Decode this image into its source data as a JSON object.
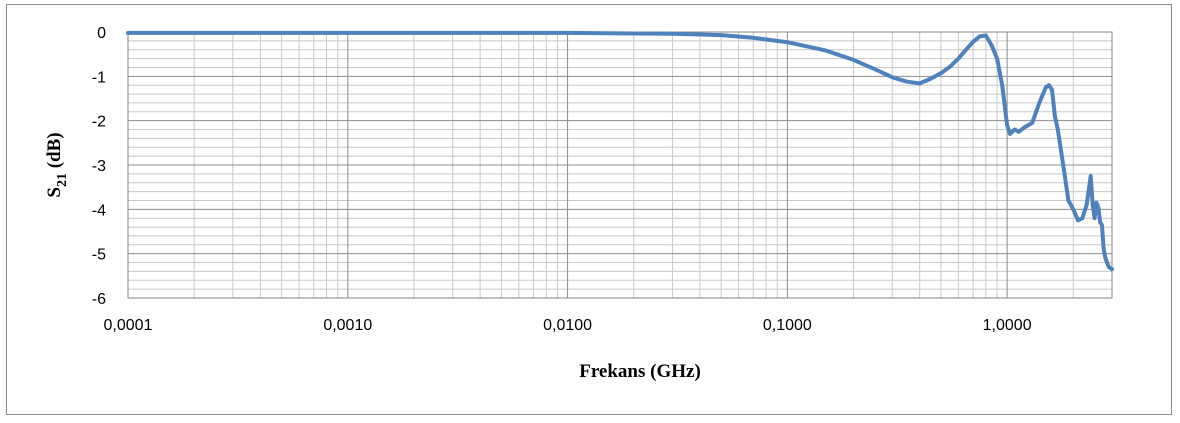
{
  "chart_data": {
    "type": "line",
    "xlabel": "Frekans (GHz)",
    "ylabel_main": "S",
    "ylabel_sub": "21",
    "ylabel_unit": " (dB)",
    "x_scale": "log",
    "xlim": [
      0.0001,
      3.0
    ],
    "ylim": [
      -6,
      0
    ],
    "x_ticks": [
      "0,0001",
      "0,0010",
      "0,0100",
      "0,1000",
      "1,0000"
    ],
    "x_tick_values": [
      0.0001,
      0.001,
      0.01,
      0.1,
      1.0
    ],
    "y_ticks": [
      "0",
      "-1",
      "-2",
      "-3",
      "-4",
      "-5",
      "-6"
    ],
    "y_tick_values": [
      0,
      -1,
      -2,
      -3,
      -4,
      -5,
      -6
    ],
    "grid": "major+minor",
    "legend": "none",
    "line_color": "#4f81bd",
    "series": [
      {
        "x": [
          0.0001,
          0.001,
          0.01,
          0.03,
          0.05,
          0.07,
          0.1,
          0.15,
          0.2,
          0.25,
          0.3,
          0.35,
          0.4,
          0.45,
          0.5,
          0.55,
          0.6,
          0.65,
          0.7,
          0.75,
          0.8,
          0.85,
          0.9,
          0.95,
          1.0,
          1.03,
          1.08,
          1.13,
          1.2,
          1.3,
          1.4,
          1.5,
          1.55,
          1.6,
          1.65,
          1.7,
          1.8,
          1.9,
          2.0,
          2.1,
          2.2,
          2.3,
          2.4,
          2.45,
          2.5,
          2.55,
          2.6,
          2.65,
          2.7,
          2.75,
          2.8,
          2.9,
          3.0
        ],
        "values": [
          -0.02,
          -0.02,
          -0.02,
          -0.04,
          -0.07,
          -0.13,
          -0.23,
          -0.42,
          -0.63,
          -0.84,
          -1.02,
          -1.12,
          -1.16,
          -1.05,
          -0.93,
          -0.78,
          -0.6,
          -0.4,
          -0.22,
          -0.1,
          -0.08,
          -0.3,
          -0.6,
          -1.2,
          -2.1,
          -2.3,
          -2.2,
          -2.25,
          -2.15,
          -2.05,
          -1.6,
          -1.25,
          -1.2,
          -1.3,
          -1.9,
          -2.2,
          -3.0,
          -3.8,
          -4.0,
          -4.25,
          -4.2,
          -3.9,
          -3.25,
          -3.9,
          -4.2,
          -3.85,
          -3.95,
          -4.3,
          -4.35,
          -4.9,
          -5.1,
          -5.3,
          -5.35
        ]
      }
    ]
  }
}
